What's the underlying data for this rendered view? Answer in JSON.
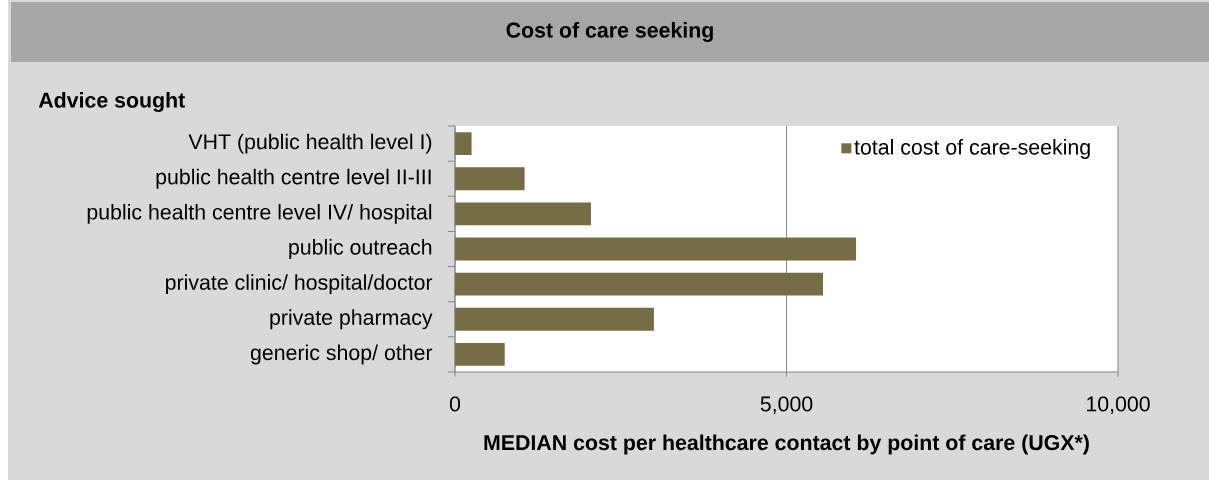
{
  "chart_data": {
    "type": "bar",
    "orientation": "horizontal",
    "title": "Cost of care seeking",
    "ylabel": "Advice sought",
    "xlabel": "MEDIAN cost per healthcare contact by point of care (UGX*)",
    "categories": [
      "VHT (public health level I)",
      "public health centre level II-III",
      "public health centre level IV/ hospital",
      "public outreach",
      "private clinic/ hospital/doctor",
      "private pharmacy",
      "generic shop/ other"
    ],
    "series": [
      {
        "name": "total cost of care-seeking",
        "color": "#766c45",
        "values": [
          250,
          1050,
          2050,
          6050,
          5550,
          3000,
          750
        ]
      }
    ],
    "xlim": [
      0,
      10000
    ],
    "xticks": [
      0,
      {
        "value": 5000,
        "label": "5,000"
      },
      {
        "value": 10000,
        "label": "10,000"
      }
    ],
    "grid": "x",
    "legend": "top right"
  }
}
